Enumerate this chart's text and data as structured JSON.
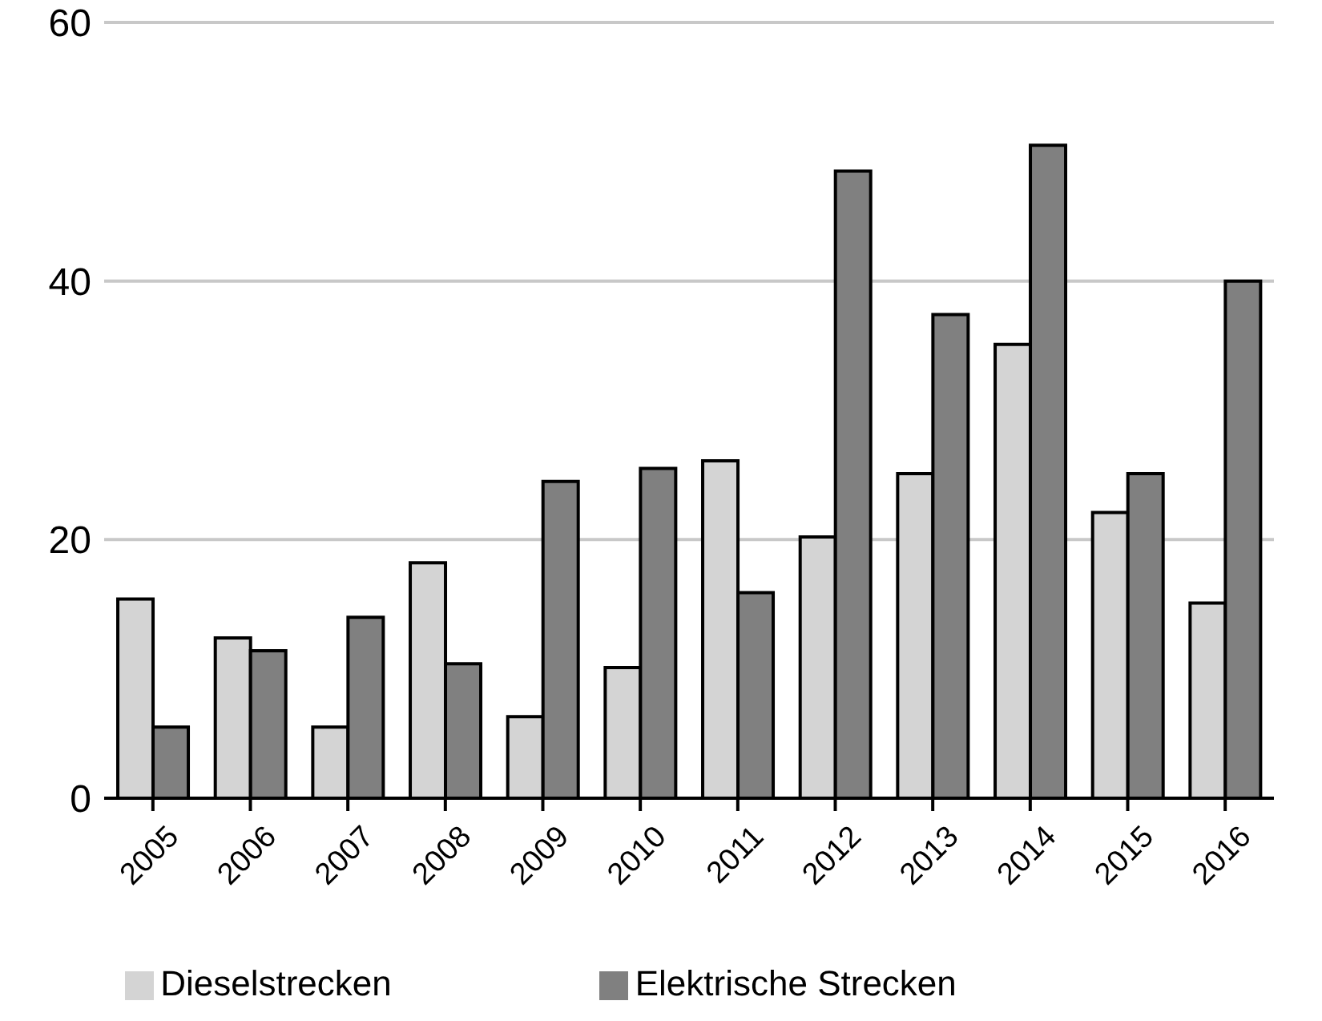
{
  "chart_data": {
    "type": "bar",
    "categories": [
      "2005",
      "2006",
      "2007",
      "2008",
      "2009",
      "2010",
      "2011",
      "2012",
      "2013",
      "2014",
      "2015",
      "2016"
    ],
    "series": [
      {
        "name": "Dieselstrecken",
        "color": "#d4d4d4",
        "values": [
          15.4,
          12.4,
          5.5,
          18.2,
          6.3,
          10.1,
          26.1,
          20.2,
          25.1,
          35.1,
          22.1,
          15.1
        ]
      },
      {
        "name": "Elektrische Strecken",
        "color": "#808080",
        "values": [
          5.5,
          11.4,
          14.0,
          10.4,
          24.5,
          25.5,
          15.9,
          48.5,
          37.4,
          50.5,
          25.1,
          40.0
        ]
      }
    ],
    "ylim": [
      0,
      60
    ],
    "yticks": [
      0,
      20,
      40,
      60
    ],
    "grid": "y",
    "legend": "bottom"
  }
}
